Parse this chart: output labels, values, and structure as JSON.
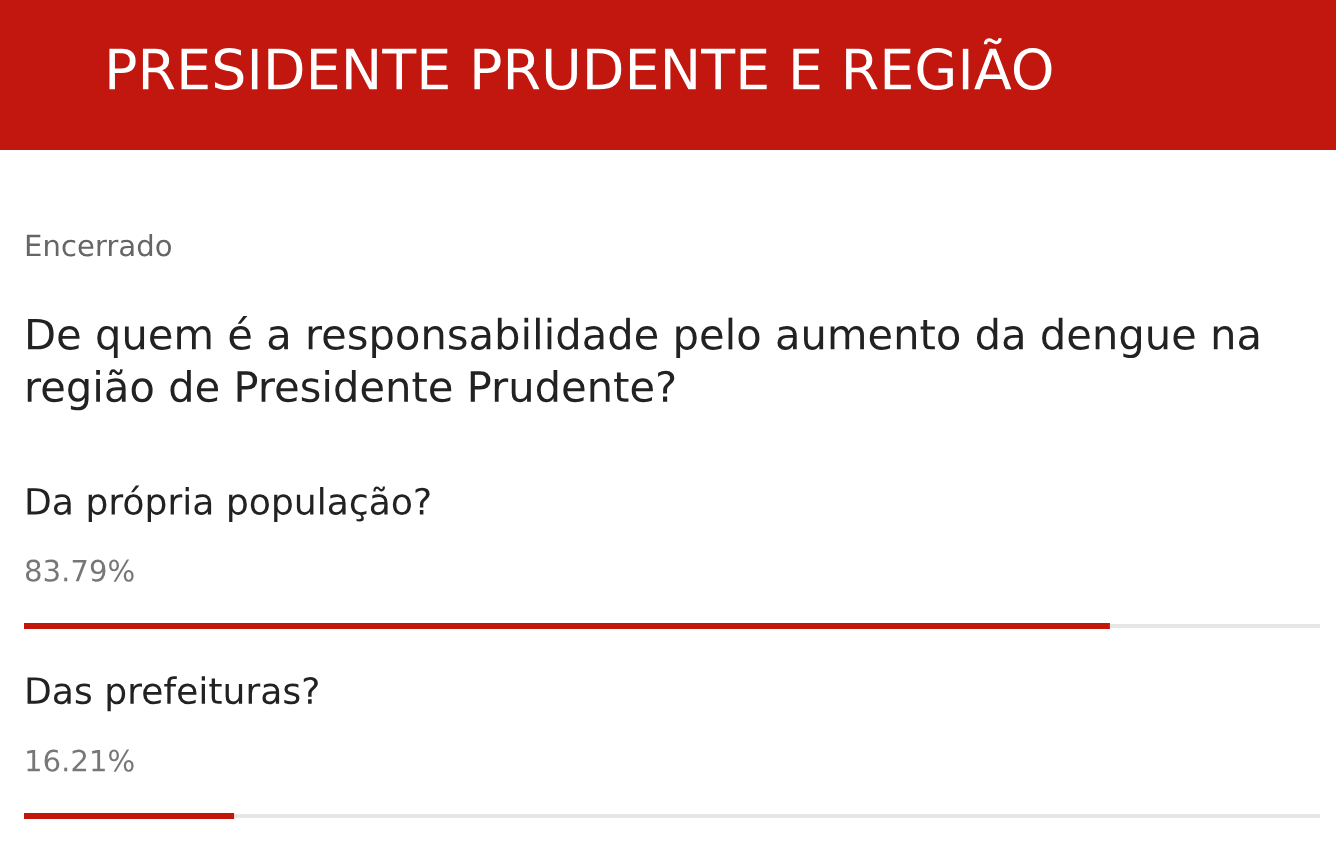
{
  "chart_data": {
    "type": "bar",
    "orientation": "horizontal",
    "title": "PRESIDENTE PRUDENTE E REGIÃO",
    "subtitle": "De quem é a responsabilidade pelo aumento da dengue na região de Presidente Prudente?",
    "annotations": [
      "Encerrado"
    ],
    "categories": [
      "Da própria população?",
      "Das prefeituras?"
    ],
    "values": [
      83.79,
      16.21
    ],
    "value_labels": [
      "83.79%",
      "16.21%"
    ],
    "color": "#c4170c",
    "xlim": [
      0,
      100
    ],
    "tick_labels": false
  }
}
